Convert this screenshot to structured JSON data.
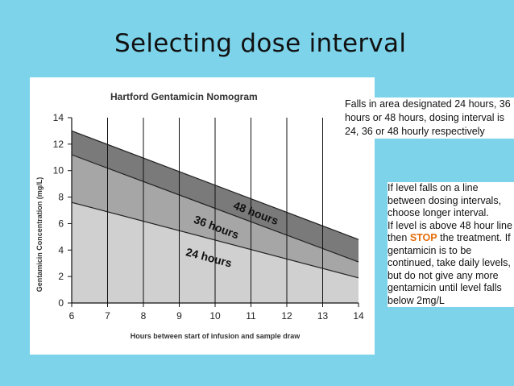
{
  "slide": {
    "title": "Selecting dose interval"
  },
  "notes": {
    "zone_note": "Falls in area designated 24 hours, 36 hours or 48 hours, dosing interval is 24, 36 or 48 hourly respectively",
    "line_note": "If level falls on a line between dosing intervals, choose longer interval.",
    "stop_prefix": "If level is above 48 hour line then ",
    "stop_word": "STOP",
    "stop_suffix": " the treatment. If gentamicin is to be continued, take daily levels, but do not give any more gentamicin until level falls below 2mg/L"
  },
  "colors": {
    "background": "#7dd3ea",
    "band_48": "#7a7a7a",
    "band_36": "#a6a6a6",
    "band_24": "#d0d0d0",
    "stop": "#e46c0a"
  },
  "chart_data": {
    "type": "area",
    "title": "Hartford Gentamicin Nomogram",
    "xlabel": "Hours between start of infusion and sample draw",
    "ylabel": "Gentamicin Concentration (mg/L)",
    "xlim": [
      6,
      14
    ],
    "ylim": [
      0,
      14
    ],
    "x_ticks": [
      6,
      7,
      8,
      9,
      10,
      11,
      12,
      13,
      14
    ],
    "y_ticks": [
      0,
      2,
      4,
      6,
      8,
      10,
      12,
      14
    ],
    "grid": "vertical",
    "boundaries": [
      {
        "name": "top",
        "x": [
          6,
          14
        ],
        "y": [
          13.0,
          4.8
        ]
      },
      {
        "name": "48-36",
        "x": [
          6,
          14
        ],
        "y": [
          11.2,
          3.1
        ]
      },
      {
        "name": "36-24",
        "x": [
          6,
          14
        ],
        "y": [
          7.6,
          1.9
        ]
      }
    ],
    "bands": [
      {
        "label": "48 hours",
        "upper": "top",
        "lower": "48-36",
        "color": "#7a7a7a"
      },
      {
        "label": "36 hours",
        "upper": "48-36",
        "lower": "36-24",
        "color": "#a6a6a6"
      },
      {
        "label": "24 hours",
        "upper": "36-24",
        "lower": "axis",
        "color": "#d0d0d0"
      }
    ]
  }
}
